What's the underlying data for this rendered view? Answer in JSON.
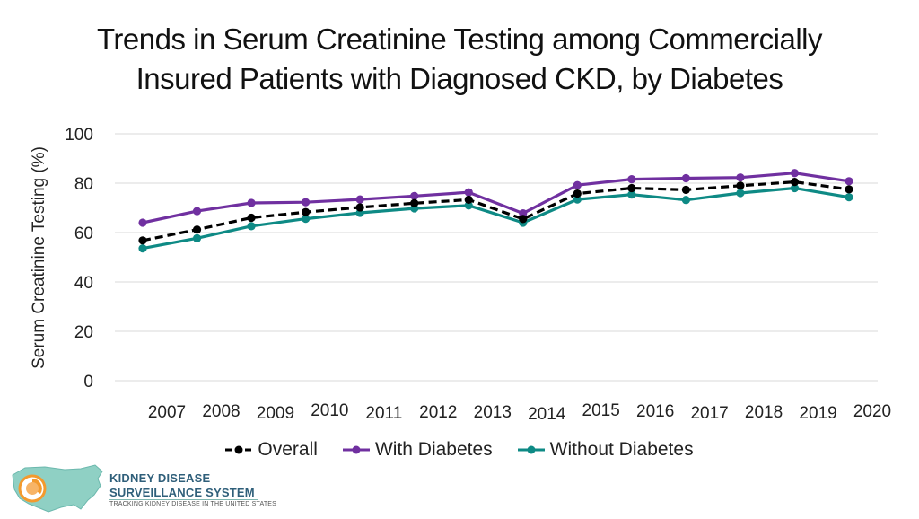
{
  "title_line1": "Trends in Serum Creatinine Testing among Commercially",
  "title_line2": "Insured Patients with Diagnosed CKD, by Diabetes",
  "chart_data": {
    "type": "line",
    "title": "Trends in Serum Creatinine Testing among Commercially Insured Patients with Diagnosed CKD, by Diabetes",
    "xlabel": "",
    "ylabel": "Serum Creatinine Testing (%)",
    "ylim": [
      0,
      100
    ],
    "yticks": [
      0,
      20,
      40,
      60,
      80,
      100
    ],
    "grid": true,
    "legend_position": "bottom",
    "categories": [
      "2007",
      "2008",
      "2009",
      "2010",
      "2011",
      "2012",
      "2013",
      "2014",
      "2015",
      "2016",
      "2017",
      "2018",
      "2019",
      "2020"
    ],
    "series": [
      {
        "name": "Overall",
        "color": "#000000",
        "style": "dashed",
        "values": [
          56.8,
          61.2,
          66.0,
          68.3,
          70.2,
          71.9,
          73.3,
          65.5,
          75.8,
          78.0,
          77.3,
          79.0,
          80.5,
          77.5
        ]
      },
      {
        "name": "With Diabetes",
        "color": "#7030a0",
        "style": "solid",
        "values": [
          64.0,
          68.7,
          72.0,
          72.3,
          73.4,
          74.8,
          76.3,
          67.8,
          79.2,
          81.6,
          82.0,
          82.3,
          84.1,
          80.8
        ]
      },
      {
        "name": "Without Diabetes",
        "color": "#0e8a85",
        "style": "solid",
        "values": [
          53.6,
          57.7,
          62.6,
          65.6,
          68.0,
          69.8,
          71.0,
          64.0,
          73.4,
          75.4,
          73.2,
          76.0,
          78.0,
          74.3
        ]
      }
    ]
  },
  "logo": {
    "line1": "KIDNEY DISEASE",
    "line2": "SURVEILLANCE SYSTEM",
    "tagline": "TRACKING KIDNEY DISEASE IN THE UNITED STATES",
    "colors": {
      "text": "#2f5f7a",
      "map": "#8fd0c4",
      "accent": "#f39a2e"
    }
  }
}
